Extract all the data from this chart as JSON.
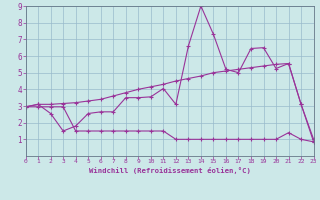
{
  "xlabel": "Windchill (Refroidissement éolien,°C)",
  "line_color": "#993399",
  "bg_color": "#cce8e8",
  "grid_color": "#99bbcc",
  "line1_x": [
    0,
    1,
    2,
    3,
    4,
    5,
    6,
    7,
    8,
    9,
    10,
    11,
    12,
    13,
    14,
    15,
    16,
    17,
    18,
    19,
    20,
    21,
    22,
    23
  ],
  "line1_y": [
    2.95,
    3.1,
    2.55,
    1.5,
    1.8,
    2.55,
    2.65,
    2.65,
    3.5,
    3.5,
    3.55,
    4.05,
    3.1,
    6.6,
    9.0,
    7.3,
    5.2,
    5.0,
    6.45,
    6.5,
    5.25,
    5.55,
    3.1,
    0.85
  ],
  "line2_x": [
    0,
    1,
    2,
    3,
    4,
    5,
    6,
    7,
    8,
    9,
    10,
    11,
    12,
    13,
    14,
    15,
    16,
    17,
    18,
    19,
    20,
    21,
    22,
    23
  ],
  "line2_y": [
    2.95,
    3.1,
    3.1,
    3.15,
    3.2,
    3.3,
    3.4,
    3.6,
    3.8,
    4.0,
    4.15,
    4.3,
    4.5,
    4.65,
    4.8,
    5.0,
    5.1,
    5.2,
    5.3,
    5.4,
    5.5,
    5.55,
    3.1,
    1.0
  ],
  "line3_x": [
    0,
    1,
    2,
    3,
    4,
    5,
    6,
    7,
    8,
    9,
    10,
    11,
    12,
    13,
    14,
    15,
    16,
    17,
    18,
    19,
    20,
    21,
    22,
    23
  ],
  "line3_y": [
    2.95,
    2.95,
    2.95,
    2.95,
    1.5,
    1.5,
    1.5,
    1.5,
    1.5,
    1.5,
    1.5,
    1.5,
    1.0,
    1.0,
    1.0,
    1.0,
    1.0,
    1.0,
    1.0,
    1.0,
    1.0,
    1.4,
    1.0,
    0.85
  ],
  "xlim": [
    0,
    23
  ],
  "ylim": [
    0,
    9
  ],
  "xticks": [
    0,
    1,
    2,
    3,
    4,
    5,
    6,
    7,
    8,
    9,
    10,
    11,
    12,
    13,
    14,
    15,
    16,
    17,
    18,
    19,
    20,
    21,
    22,
    23
  ],
  "yticks": [
    1,
    2,
    3,
    4,
    5,
    6,
    7,
    8,
    9
  ]
}
